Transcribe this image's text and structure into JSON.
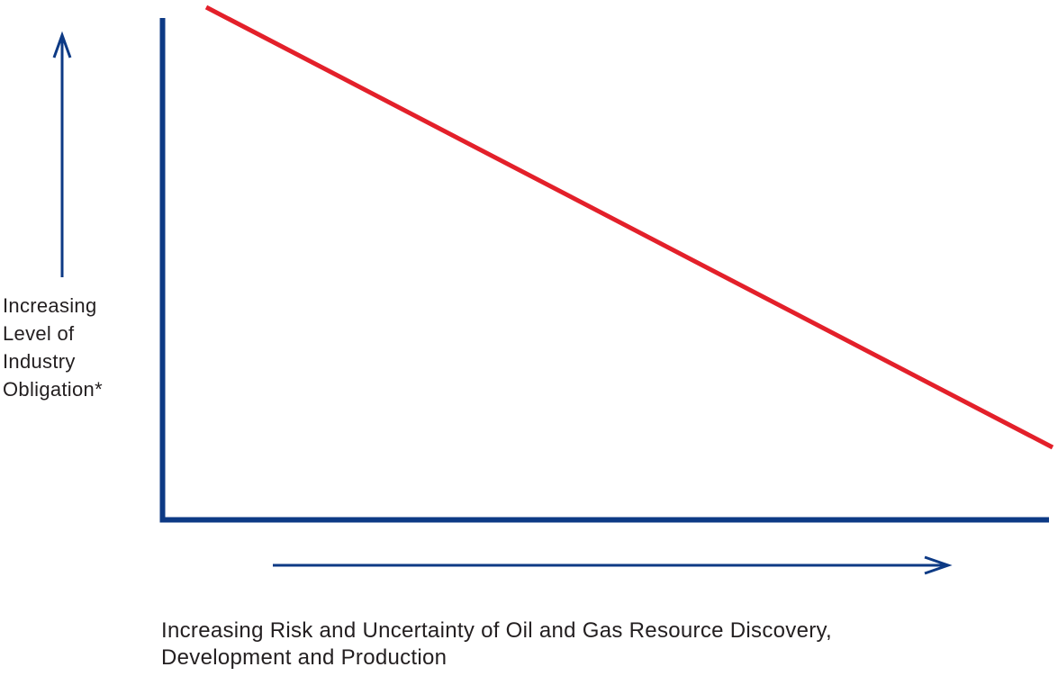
{
  "diagram": {
    "y_label_lines": [
      "Increasing",
      "Level of",
      "Industry",
      "Obligation*"
    ],
    "x_label_lines": [
      "Increasing Risk and Uncertainty of Oil and Gas Resource Discovery,",
      "Development and Production"
    ],
    "trend": "decreasing",
    "colors": {
      "axis": "#0d3a85",
      "trend_line": "#e3202a",
      "text": "#231f20"
    }
  }
}
